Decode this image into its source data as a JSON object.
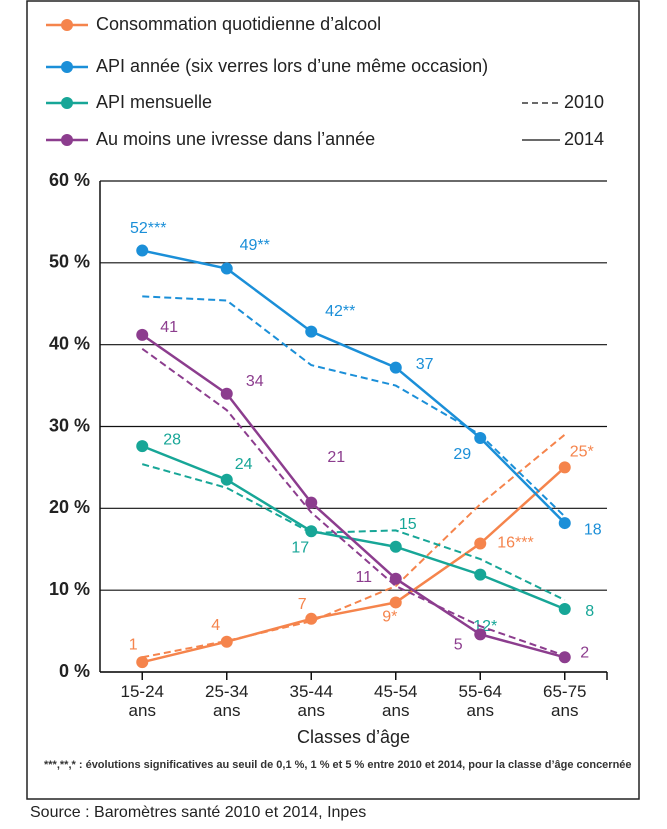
{
  "chart_data": {
    "type": "line",
    "categories": [
      "15-24 ans",
      "25-34 ans",
      "35-44 ans",
      "45-54 ans",
      "55-64 ans",
      "65-75 ans"
    ],
    "series": [
      {
        "name": "Consommation quotidienne d’alcool",
        "color": "#f5844c",
        "values": [
          1.2,
          3.7,
          6.5,
          8.5,
          15.7,
          25
        ],
        "values_2010": [
          1.8,
          3.8,
          6.2,
          10.5,
          20.5,
          29
        ],
        "value_labels": [
          "1",
          "4",
          "7",
          "9*",
          "16***",
          "25*"
        ]
      },
      {
        "name": "API année (six verres lors d’une même occasion)",
        "color": "#1b8fd8",
        "values": [
          51.5,
          49.3,
          41.6,
          37.2,
          28.6,
          18.2
        ],
        "values_2010": [
          45.9,
          45.4,
          37.5,
          35,
          29,
          19
        ],
        "value_labels": [
          "52***",
          "49**",
          "42**",
          "37",
          "29",
          "18"
        ]
      },
      {
        "name": "API mensuelle",
        "color": "#17a697",
        "values": [
          27.6,
          23.5,
          17.2,
          15.3,
          11.9,
          7.7
        ],
        "values_2010": [
          25.4,
          22.5,
          17,
          17.3,
          13.8,
          8.8
        ],
        "value_labels": [
          "28",
          "24",
          "17",
          "15",
          "12*",
          "8"
        ]
      },
      {
        "name": "Au moins une ivresse dans l’année",
        "color": "#8c3d8e",
        "values": [
          41.2,
          34,
          20.7,
          11.4,
          4.6,
          1.8
        ],
        "values_2010": [
          39.5,
          32,
          19.5,
          10.5,
          5.6,
          2
        ],
        "value_labels": [
          "41",
          "34",
          "21",
          "11",
          "5",
          "2"
        ]
      }
    ],
    "line_styles": [
      {
        "name": "2010",
        "dashed": true
      },
      {
        "name": "2014",
        "dashed": false
      }
    ],
    "ylim": [
      0,
      60
    ],
    "yticks": [
      {
        "value": 0,
        "label": "0 %"
      },
      {
        "value": 10,
        "label": "10 %"
      },
      {
        "value": 20,
        "label": "20 %"
      },
      {
        "value": 30,
        "label": "30 %"
      },
      {
        "value": 40,
        "label": "40 %"
      },
      {
        "value": 50,
        "label": "50 %"
      },
      {
        "value": 60,
        "label": "60 %"
      }
    ],
    "grid": true,
    "xlabel": "Classes d’âge",
    "footnote": "***,**,* : évolutions significatives au seuil de 0,1 %, 1 % et 5 % entre 2010 et 2014, pour la classe d’âge concernée",
    "source": "Source : Baromètres santé 2010 et 2014, Inpes"
  }
}
